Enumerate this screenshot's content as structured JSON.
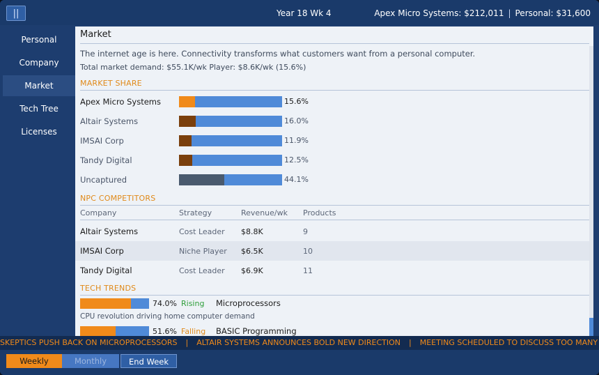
{
  "topbar": {
    "menu_label": "||",
    "date": "Year 18  Wk 4",
    "company_money": "Apex Micro Systems: $212,011",
    "separator": "|",
    "personal_money": "Personal: $31,600"
  },
  "sidebar": {
    "items": [
      {
        "label": "Personal"
      },
      {
        "label": "Company"
      },
      {
        "label": "Market"
      },
      {
        "label": "Tech Tree"
      },
      {
        "label": "Licenses"
      }
    ],
    "active": "Market"
  },
  "main": {
    "title": "Market",
    "intro": "The internet age is here. Connectivity transforms what customers want from a personal computer.",
    "demand": "Total market demand: $55.1K/wk   Player: $8.6K/wk (15.6%)",
    "market_share": {
      "heading": "MARKET SHARE",
      "rows": [
        {
          "name": "Apex Micro Systems",
          "pct_label": "15.6%",
          "share": 0.156,
          "color": "#f08a1a"
        },
        {
          "name": "Altair Systems",
          "pct_label": "16.0%",
          "share": 0.16,
          "color": "#7a3f0c"
        },
        {
          "name": "IMSAI Corp",
          "pct_label": "11.9%",
          "share": 0.119,
          "color": "#7a3f0c"
        },
        {
          "name": "Tandy Digital",
          "pct_label": "12.5%",
          "share": 0.125,
          "color": "#7a3f0c"
        },
        {
          "name": "Uncaptured",
          "pct_label": "44.1%",
          "share": 0.441,
          "color": "#4a5a6e"
        }
      ]
    },
    "npc": {
      "heading": "NPC COMPETITORS",
      "columns": [
        "Company",
        "Strategy",
        "Revenue/wk",
        "Products"
      ],
      "rows": [
        {
          "company": "Altair Systems",
          "strategy": "Cost Leader",
          "revenue": "$8.8K",
          "products": "9"
        },
        {
          "company": "IMSAI Corp",
          "strategy": "Niche Player",
          "revenue": "$6.5K",
          "products": "10"
        },
        {
          "company": "Tandy Digital",
          "strategy": "Cost Leader",
          "revenue": "$6.9K",
          "products": "11"
        }
      ]
    },
    "trends": {
      "heading": "TECH TRENDS",
      "items": [
        {
          "pct_label": "74.0%",
          "value": 0.74,
          "status": "Rising",
          "status_color": "#2e9e3a",
          "name": "Microprocessors",
          "desc": "CPU revolution driving home computer demand"
        },
        {
          "pct_label": "51.6%",
          "value": 0.516,
          "status": "Falling",
          "status_color": "#e08a1a",
          "name": "BASIC Programming",
          "desc": ""
        }
      ]
    }
  },
  "ticker": {
    "items": [
      "SKEPTICS PUSH BACK ON MICROPROCESSORS",
      "ALTAIR SYSTEMS ANNOUNCES BOLD NEW DIRECTION",
      "MEETING SCHEDULED TO DISCUSS TOO MANY MEETINGS"
    ],
    "separator": "|"
  },
  "bottombar": {
    "weekly": "Weekly",
    "monthly": "Monthly",
    "end_week": "End Week"
  }
}
